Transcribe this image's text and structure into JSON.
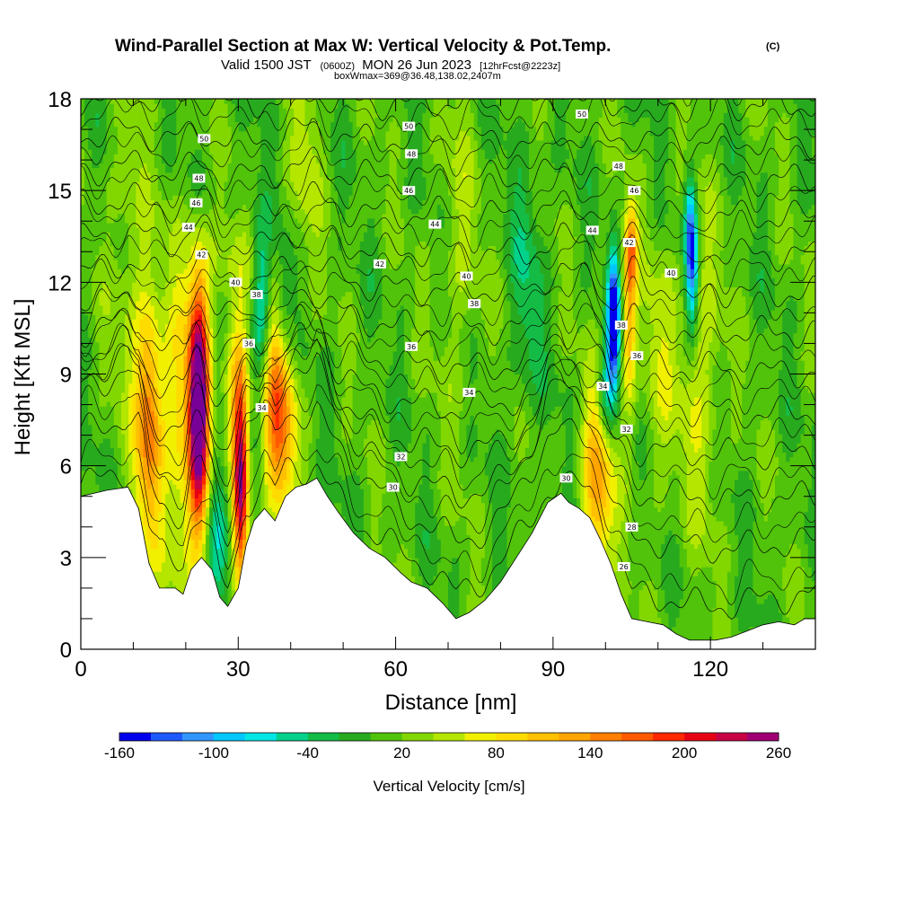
{
  "chart_data": {
    "type": "heatmap",
    "title": "Wind-Parallel Section at Max W: Vertical Velocity & Pot.Temp.",
    "title_mark": "(C)",
    "subtitle_parts": {
      "valid": "Valid 1500 JST",
      "utc": "(0600Z)",
      "date": "MON 26 Jun 2023",
      "fcst": "[12hrFcst@2223z]"
    },
    "info": "boxWmax=369@36.48,138.02,2407m",
    "xlabel": "Distance [nm]",
    "ylabel": "Height [Kft MSL]",
    "xlim": [
      0,
      140
    ],
    "ylim": [
      0,
      18
    ],
    "x_ticks": [
      "0",
      "30",
      "60",
      "90",
      "120"
    ],
    "x_tick_values": [
      0,
      30,
      60,
      90,
      120
    ],
    "y_ticks": [
      "0",
      "3",
      "6",
      "9",
      "12",
      "15",
      "18"
    ],
    "y_tick_values": [
      0,
      3,
      6,
      9,
      12,
      15,
      18
    ],
    "colorbar": {
      "label": "Vertical Velocity [cm/s]",
      "tick_labels": [
        "-160",
        "-100",
        "-40",
        "20",
        "80",
        "140",
        "200",
        "260"
      ],
      "min": -160,
      "max": 260,
      "step": 20,
      "colors": [
        "#0000ee",
        "#1e5aff",
        "#3296ff",
        "#00c8ff",
        "#00e6e6",
        "#00d28c",
        "#14bc46",
        "#28aa1e",
        "#50c30a",
        "#82d700",
        "#b4e600",
        "#f0f000",
        "#ffdc00",
        "#ffc000",
        "#ffa500",
        "#ff8000",
        "#ff5a00",
        "#ff2800",
        "#e60014",
        "#c80046",
        "#a00073",
        "#780096"
      ]
    },
    "terrain": [
      [
        0,
        5.0
      ],
      [
        5,
        5.2
      ],
      [
        9,
        5.3
      ],
      [
        11,
        4.6
      ],
      [
        13,
        2.8
      ],
      [
        15,
        2.0
      ],
      [
        18,
        2.0
      ],
      [
        19.5,
        1.8
      ],
      [
        21,
        2.6
      ],
      [
        23,
        3.0
      ],
      [
        25,
        2.6
      ],
      [
        26.5,
        1.7
      ],
      [
        28,
        1.4
      ],
      [
        30,
        2.0
      ],
      [
        31.5,
        3.4
      ],
      [
        33,
        4.2
      ],
      [
        35,
        4.6
      ],
      [
        37,
        4.2
      ],
      [
        39,
        5.0
      ],
      [
        41,
        5.3
      ],
      [
        43,
        5.4
      ],
      [
        45,
        5.6
      ],
      [
        47,
        5.0
      ],
      [
        49,
        4.5
      ],
      [
        52,
        3.8
      ],
      [
        55,
        3.3
      ],
      [
        58,
        3.0
      ],
      [
        61,
        2.5
      ],
      [
        63,
        2.2
      ],
      [
        66,
        2.0
      ],
      [
        69,
        1.5
      ],
      [
        71.5,
        1.0
      ],
      [
        74,
        1.2
      ],
      [
        77,
        1.6
      ],
      [
        80,
        2.2
      ],
      [
        83,
        3.0
      ],
      [
        86,
        3.8
      ],
      [
        89,
        4.8
      ],
      [
        91.5,
        5.1
      ],
      [
        93,
        4.8
      ],
      [
        95,
        4.6
      ],
      [
        97,
        4.3
      ],
      [
        99,
        3.6
      ],
      [
        101,
        2.8
      ],
      [
        103,
        1.8
      ],
      [
        105,
        1.0
      ],
      [
        108,
        0.9
      ],
      [
        111,
        0.8
      ],
      [
        113.5,
        0.5
      ],
      [
        116,
        0.3
      ],
      [
        118,
        0.3
      ],
      [
        121,
        0.3
      ],
      [
        124,
        0.4
      ],
      [
        127,
        0.6
      ],
      [
        130,
        0.8
      ],
      [
        133,
        0.9
      ],
      [
        136,
        0.8
      ],
      [
        138,
        1.0
      ],
      [
        140,
        1.0
      ]
    ],
    "w_features": [
      {
        "x": 13,
        "y": 7.5,
        "sx": 1.8,
        "sy": 2.8,
        "w": 150
      },
      {
        "x": 22.5,
        "y": 8.0,
        "sx": 1.3,
        "sy": 2.8,
        "w": 280
      },
      {
        "x": 19.5,
        "y": 7.0,
        "sx": 2.5,
        "sy": 3.6,
        "w": 90
      },
      {
        "x": 30.5,
        "y": 5.4,
        "sx": 1.0,
        "sy": 2.2,
        "w": 230
      },
      {
        "x": 29.5,
        "y": 8.6,
        "sx": 1.6,
        "sy": 2.0,
        "w": 90
      },
      {
        "x": 38,
        "y": 7.3,
        "sx": 2.2,
        "sy": 2.2,
        "w": 130
      },
      {
        "x": 36.5,
        "y": 9.6,
        "sx": 1.8,
        "sy": 2.4,
        "w": 60
      },
      {
        "x": 26.5,
        "y": 3.8,
        "sx": 1.6,
        "sy": 1.8,
        "w": -70
      },
      {
        "x": 34.5,
        "y": 11.2,
        "sx": 1.4,
        "sy": 2.0,
        "w": -100
      },
      {
        "x": 38.5,
        "y": 11.0,
        "sx": 1.2,
        "sy": 1.5,
        "w": -60
      },
      {
        "x": 101.5,
        "y": 10.8,
        "sx": 0.8,
        "sy": 1.5,
        "w": -180
      },
      {
        "x": 100,
        "y": 8.5,
        "sx": 1.2,
        "sy": 1.2,
        "w": -90
      },
      {
        "x": 104.5,
        "y": 11.0,
        "sx": 0.9,
        "sy": 2.2,
        "w": 110
      },
      {
        "x": 98.5,
        "y": 5.3,
        "sx": 2.2,
        "sy": 2.4,
        "w": 120
      },
      {
        "x": 105,
        "y": 13.2,
        "sx": 0.8,
        "sy": 0.9,
        "w": 90
      },
      {
        "x": 116.5,
        "y": 12.5,
        "sx": 0.8,
        "sy": 1.5,
        "w": -130
      },
      {
        "x": 116,
        "y": 14.0,
        "sx": 0.8,
        "sy": 1.2,
        "w": -70
      },
      {
        "x": 118,
        "y": 9.0,
        "sx": 3.0,
        "sy": 3.5,
        "w": 50
      },
      {
        "x": 110,
        "y": 9.5,
        "sx": 2.5,
        "sy": 3.0,
        "w": 40
      },
      {
        "x": 27,
        "y": 12.5,
        "sx": 4.5,
        "sy": 1.2,
        "w": 30
      },
      {
        "x": 9,
        "y": 13.0,
        "sx": 2.5,
        "sy": 4.0,
        "w": 35
      },
      {
        "x": 72,
        "y": 13.0,
        "sx": 3.0,
        "sy": 4.0,
        "w": 30
      },
      {
        "x": 43,
        "y": 16.0,
        "sx": 2.0,
        "sy": 2.5,
        "w": 40
      },
      {
        "x": 85,
        "y": 12.0,
        "sx": 2.0,
        "sy": 3.0,
        "w": -40
      }
    ],
    "theta_levels": [
      26,
      28,
      30,
      32,
      34,
      36,
      38,
      40,
      42,
      44,
      46,
      48,
      50
    ],
    "contour_labels": [
      {
        "x": 23.5,
        "y": 16.7,
        "text": "50"
      },
      {
        "x": 62.5,
        "y": 17.1,
        "text": "50"
      },
      {
        "x": 95.5,
        "y": 17.5,
        "text": "50"
      },
      {
        "x": 22.5,
        "y": 15.4,
        "text": "48"
      },
      {
        "x": 63,
        "y": 16.2,
        "text": "48"
      },
      {
        "x": 102.5,
        "y": 15.8,
        "text": "48"
      },
      {
        "x": 22,
        "y": 14.6,
        "text": "46"
      },
      {
        "x": 62.5,
        "y": 15.0,
        "text": "46"
      },
      {
        "x": 105.5,
        "y": 15.0,
        "text": "46"
      },
      {
        "x": 20.5,
        "y": 13.8,
        "text": "44"
      },
      {
        "x": 67.5,
        "y": 13.9,
        "text": "44"
      },
      {
        "x": 97.5,
        "y": 13.7,
        "text": "44"
      },
      {
        "x": 23,
        "y": 12.9,
        "text": "42"
      },
      {
        "x": 57,
        "y": 12.6,
        "text": "42"
      },
      {
        "x": 104.5,
        "y": 13.3,
        "text": "42"
      },
      {
        "x": 29.5,
        "y": 12.0,
        "text": "40"
      },
      {
        "x": 73.5,
        "y": 12.2,
        "text": "40"
      },
      {
        "x": 112.5,
        "y": 12.3,
        "text": "40"
      },
      {
        "x": 33.5,
        "y": 11.6,
        "text": "38"
      },
      {
        "x": 75,
        "y": 11.3,
        "text": "38"
      },
      {
        "x": 103,
        "y": 10.6,
        "text": "38"
      },
      {
        "x": 32,
        "y": 10.0,
        "text": "36"
      },
      {
        "x": 63,
        "y": 9.9,
        "text": "36"
      },
      {
        "x": 106,
        "y": 9.6,
        "text": "36"
      },
      {
        "x": 34.5,
        "y": 7.9,
        "text": "34"
      },
      {
        "x": 74,
        "y": 8.4,
        "text": "34"
      },
      {
        "x": 99.5,
        "y": 8.6,
        "text": "34"
      },
      {
        "x": 61,
        "y": 6.3,
        "text": "32"
      },
      {
        "x": 104,
        "y": 7.2,
        "text": "32"
      },
      {
        "x": 59.5,
        "y": 5.3,
        "text": "30"
      },
      {
        "x": 92.5,
        "y": 5.6,
        "text": "30"
      },
      {
        "x": 105,
        "y": 4.0,
        "text": "28"
      },
      {
        "x": 103.5,
        "y": 2.7,
        "text": "26"
      }
    ],
    "grid": false,
    "legend": "bottom"
  }
}
